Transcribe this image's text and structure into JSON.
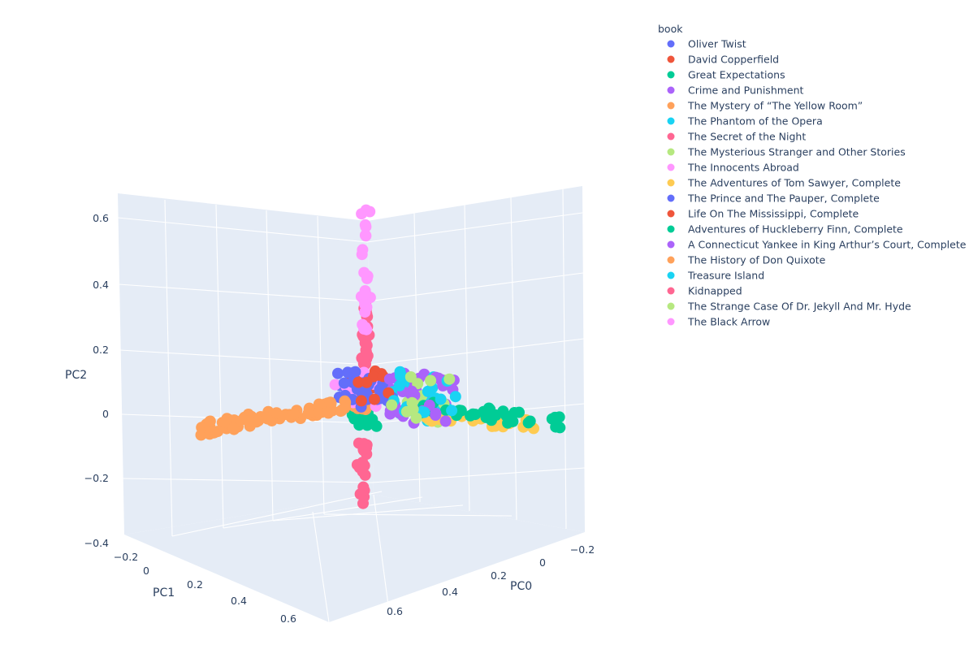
{
  "chart_data": {
    "type": "scatter3d",
    "legend_title": "book",
    "legend_position": "right",
    "axes": {
      "x": {
        "title": "PC0",
        "ticks": [
          "−0.2",
          "0",
          "0.2",
          "0.4",
          "0.6"
        ],
        "range": [
          -0.25,
          0.75
        ]
      },
      "y": {
        "title": "PC1",
        "ticks": [
          "−0.2",
          "0",
          "0.2",
          "0.4",
          "0.6"
        ],
        "range": [
          -0.25,
          0.7
        ]
      },
      "z": {
        "title": "PC2",
        "ticks": [
          "−0.4",
          "−0.2",
          "0",
          "0.2",
          "0.4",
          "0.6"
        ],
        "range": [
          -0.4,
          0.65
        ]
      }
    },
    "series": [
      {
        "name": "Oliver Twist",
        "color": "#636efa",
        "pattern": "center",
        "n": 22
      },
      {
        "name": "David Copperfield",
        "color": "#EF553B",
        "pattern": "center",
        "n": 10
      },
      {
        "name": "Great Expectations",
        "color": "#00cc96",
        "pattern": "center-low",
        "n": 14
      },
      {
        "name": "Crime and Punishment",
        "color": "#ab63fa",
        "pattern": "center-right",
        "n": 18
      },
      {
        "name": "The Mystery of “The Yellow Room”",
        "color": "#FFA15A",
        "pattern": "c",
        "n": 20
      },
      {
        "name": "The Phantom of the Opera",
        "color": "#19d3f3",
        "pattern": "center-right",
        "n": 20
      },
      {
        "name": "The Secret of the Night",
        "color": "#FF6692",
        "pattern": "pc2-mid",
        "n": 30
      },
      {
        "name": "The Mysterious Stranger and Other Stories",
        "color": "#B6E880",
        "pattern": "center-right",
        "n": 10
      },
      {
        "name": "The Innocents Abroad",
        "color": "#FF97FF",
        "pattern": "center",
        "n": 10
      },
      {
        "name": "The Adventures of Tom Sawyer, Complete",
        "color": "#FECB52",
        "pattern": "x-arm",
        "n": 30
      },
      {
        "name": "The Prince and The Pauper, Complete",
        "color": "#636efa",
        "pattern": "center",
        "n": 35
      },
      {
        "name": "Life On The Mississippi, Complete",
        "color": "#EF553B",
        "pattern": "center",
        "n": 8
      },
      {
        "name": "Adventures of Huckleberry Finn, Complete",
        "color": "#00cc96",
        "pattern": "x-arm-far",
        "n": 35
      },
      {
        "name": "A Connecticut Yankee in King Arthur’s Court, Complete",
        "color": "#ab63fa",
        "pattern": "center-right",
        "n": 25
      },
      {
        "name": "The History of Don Quixote",
        "color": "#FFA15A",
        "pattern": "y-arm",
        "n": 80
      },
      {
        "name": "Treasure Island",
        "color": "#19d3f3",
        "pattern": "center-right",
        "n": 15
      },
      {
        "name": "Kidnapped",
        "color": "#FF6692",
        "pattern": "pc2-low",
        "n": 20
      },
      {
        "name": "The Strange Case Of Dr. Jekyll And Mr. Hyde",
        "color": "#B6E880",
        "pattern": "center-right",
        "n": 8
      },
      {
        "name": "The Black Arrow",
        "color": "#FF97FF",
        "pattern": "pc2-high",
        "n": 28
      }
    ]
  }
}
